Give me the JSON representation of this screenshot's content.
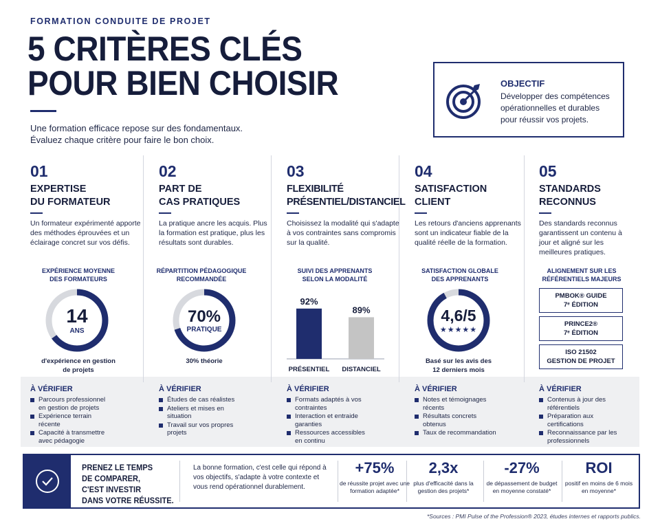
{
  "header": {
    "eyebrow": "FORMATION CONDUITE DE PROJET",
    "title_line1": "5 CRITÈRES CLÉS",
    "title_line2": "POUR BIEN CHOISIR",
    "intro_line1": "Une formation efficace repose sur des fondamentaux.",
    "intro_line2": "Évaluez chaque critère pour faire le bon choix."
  },
  "objective": {
    "title": "OBJECTIF",
    "line1": "Développer des compétences",
    "line2": "opérationnelles et durables",
    "line3": "pour réussir vos projets.",
    "icon": "target-icon"
  },
  "criteria": [
    {
      "num": "01",
      "title1": "EXPERTISE",
      "title2": "DU FORMATEUR",
      "text": "Un formateur expérimenté apporte des méthodes éprouvées et un éclairage concret sur vos défis.",
      "visual_label1": "EXPÉRIENCE MOYENNE",
      "visual_label2": "DES FORMATEURS",
      "value": "14",
      "unit": "ANS",
      "fill_fraction": 0.65,
      "caption1": "d'expérience en gestion",
      "caption2": "de projets",
      "verify_title": "À VÉRIFIER",
      "verify": [
        "Parcours professionnel en gestion de projets",
        "Expérience terrain récente",
        "Capacité à transmettre avec pédagogie"
      ]
    },
    {
      "num": "02",
      "title1": "PART DE",
      "title2": "CAS PRATIQUES",
      "text": "La pratique ancre les acquis. Plus la formation est pratique, plus les résultats sont durables.",
      "visual_label1": "RÉPARTITION PÉDAGOGIQUE",
      "visual_label2": "RECOMMANDÉE",
      "value": "70%",
      "unit": "PRATIQUE",
      "fill_fraction": 0.7,
      "caption1": "30% théorie",
      "caption2": "",
      "verify_title": "À VÉRIFIER",
      "verify": [
        "Études de cas réalistes",
        "Ateliers et mises en situation",
        "Travail sur vos propres projets"
      ]
    },
    {
      "num": "03",
      "title1": "FLEXIBILITÉ",
      "title2": "PRÉSENTIEL/DISTANCIEL",
      "text": "Choisissez la modalité qui s'adapte à vos contraintes sans compromis sur la qualité.",
      "visual_label1": "SUIVI DES APPRENANTS",
      "visual_label2": "SELON LA MODALITÉ",
      "verify_title": "À VÉRIFIER",
      "verify": [
        "Formats adaptés à vos contraintes",
        "Interaction et entraide garanties",
        "Ressources accessibles en continu"
      ]
    },
    {
      "num": "04",
      "title1": "SATISFACTION",
      "title2": "CLIENT",
      "text": "Les retours d'anciens apprenants sont un indicateur fiable de la qualité réelle de la formation.",
      "visual_label1": "SATISFACTION GLOBALE",
      "visual_label2": "DES APPRENANTS",
      "value": "4,6/5",
      "stars": "★★★★★",
      "rating": 4.6,
      "fill_fraction": 0.92,
      "caption1": "Basé sur les avis des",
      "caption2": "12 derniers mois",
      "verify_title": "À VÉRIFIER",
      "verify": [
        "Notes et témoignages récents",
        "Résultats concrets obtenus",
        "Taux de recommandation"
      ]
    },
    {
      "num": "05",
      "title1": "STANDARDS",
      "title2": "RECONNUS",
      "text": "Des standards reconnus garantissent un contenu à jour et aligné sur les meilleures pratiques.",
      "visual_label1": "ALIGNEMENT SUR LES",
      "visual_label2": "RÉFÉRENTIELS MAJEURS",
      "standards": [
        {
          "line1": "PMBOK® GUIDE",
          "line2": "7ᵉ ÉDITION"
        },
        {
          "line1": "PRINCE2®",
          "line2": "7ᵉ ÉDITION"
        },
        {
          "line1": "ISO 21502",
          "line2": "GESTION DE PROJET"
        }
      ],
      "verify_title": "À VÉRIFIER",
      "verify": [
        "Contenus à jour des référentiels",
        "Préparation aux certifications",
        "Reconnaissance par les professionnels"
      ]
    }
  ],
  "chart_data": {
    "type": "bar",
    "categories": [
      "PRÉSENTIEL",
      "DISTANCIEL"
    ],
    "values": [
      92,
      89
    ],
    "value_labels": [
      "92%",
      "89%"
    ],
    "title": "SUIVI DES APPRENANTS SELON LA MODALITÉ",
    "colors": [
      "#1f2d6e",
      "#c4c4c4"
    ]
  },
  "bottom": {
    "title1": "PRENEZ LE TEMPS",
    "title2": "DE COMPARER,",
    "title3": "C'EST INVESTIR",
    "title4": "DANS VOTRE RÉUSSITE.",
    "text": "La bonne formation, c'est celle qui répond à vos objectifs, s'adapte à votre contexte et vous rend opérationnel durablement.",
    "stats": [
      {
        "value": "+75%",
        "label": "de réussite projet avec une formation adaptée*"
      },
      {
        "value": "2,3x",
        "label": "plus d'efficacité dans la gestion des projets*"
      },
      {
        "value": "-27%",
        "label": "de dépassement de budget en moyenne constaté*"
      },
      {
        "value": "ROI",
        "label": "positif en moins de 6 mois en moyenne*"
      }
    ]
  },
  "sources": "*Sources : PMI Pulse of the Profession® 2023, études internes et rapports publics.",
  "colors": {
    "navy": "#1f2d6e",
    "ring_gray": "#d7d9de",
    "bar_gray": "#c4c4c4"
  }
}
